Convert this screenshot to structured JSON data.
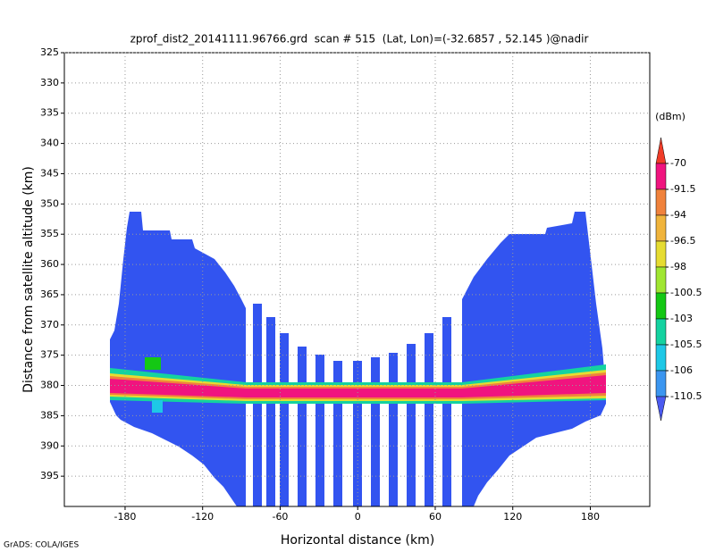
{
  "chart_data": {
    "type": "shaded",
    "title": "zprof_dist2_20141111.96766.grd  scan # 515  (Lat, Lon)=(-32.6857 , 52.145 )@nadir",
    "x_label": "Horizontal distance (km)",
    "y_label": "Distance from satellite altitude (km)",
    "footer": "GrADS: COLA/IGES",
    "xlim": [
      -227,
      226
    ],
    "xticks": [
      -180,
      -120,
      -60,
      0,
      60,
      120,
      180
    ],
    "ylim": [
      325,
      400
    ],
    "yticks": [
      325,
      330,
      335,
      340,
      345,
      350,
      355,
      360,
      365,
      370,
      375,
      380,
      385,
      390,
      395
    ],
    "y_inverted": true,
    "grid": true,
    "colorbar": {
      "label": "(dBm)",
      "levels": [
        -70,
        -91.5,
        -94,
        -96.5,
        -98,
        -100.5,
        -103,
        -105.5,
        -106,
        -110.5
      ],
      "colors": [
        "#f03c28",
        "#f0147f",
        "#f0823c",
        "#f0b43c",
        "#e6dc32",
        "#a0e632",
        "#14c814",
        "#14d2a0",
        "#1ec8e6",
        "#3c96f0",
        "#4b5af0"
      ]
    }
  }
}
